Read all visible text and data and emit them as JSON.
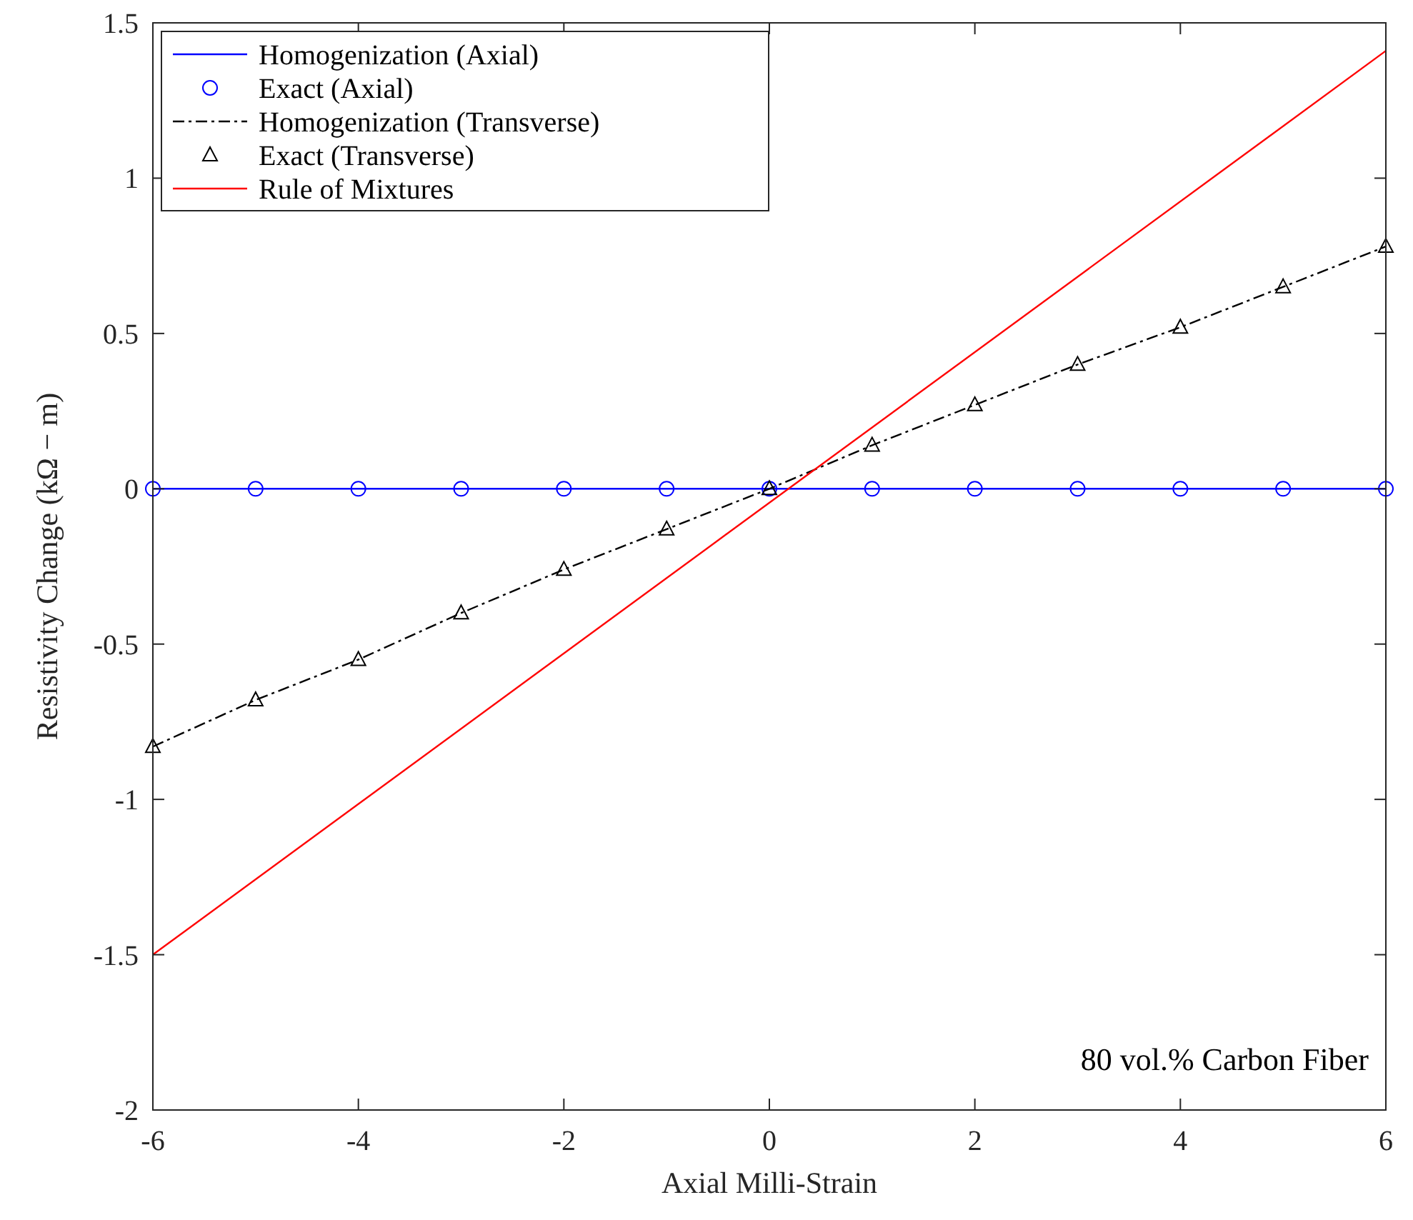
{
  "chart_data": {
    "type": "line",
    "xlabel": "Axial Milli-Strain",
    "ylabel": "Resistivity Change (kΩ − m)",
    "xlim": [
      -6,
      6
    ],
    "ylim": [
      -2,
      1.5
    ],
    "xticks": [
      -6,
      -4,
      -2,
      0,
      2,
      4,
      6
    ],
    "yticks": [
      -2,
      -1.5,
      -1,
      -0.5,
      0,
      0.5,
      1,
      1.5
    ],
    "grid": false,
    "legend": "top left",
    "annotations": [
      "80 vol.% Carbon Fiber"
    ],
    "series": [
      {
        "name": "Homogenization (Axial)",
        "color": "#0000ff",
        "marker": "none",
        "line_style": "solid",
        "x": [
          -6,
          6
        ],
        "values": [
          0,
          0
        ]
      },
      {
        "name": "Exact (Axial)",
        "type": "scatter",
        "color": "#0000ff",
        "marker": "circle",
        "x": [
          -6,
          -5,
          -4,
          -3,
          -2,
          -1,
          0,
          1,
          2,
          3,
          4,
          5,
          6
        ],
        "values": [
          0,
          0,
          0,
          0,
          0,
          0,
          0,
          0,
          0,
          0,
          0,
          0,
          0
        ]
      },
      {
        "name": "Homogenization (Transverse)",
        "color": "#000000",
        "marker": "none",
        "line_style": "dashdot",
        "x": [
          -6,
          -5,
          -4,
          -3,
          -2,
          -1,
          0,
          1,
          2,
          3,
          4,
          5,
          6
        ],
        "values": [
          -0.83,
          -0.68,
          -0.55,
          -0.4,
          -0.26,
          -0.13,
          0,
          0.14,
          0.27,
          0.4,
          0.52,
          0.65,
          0.78
        ]
      },
      {
        "name": "Exact (Transverse)",
        "type": "scatter",
        "color": "#000000",
        "marker": "triangle",
        "x": [
          -6,
          -5,
          -4,
          -3,
          -2,
          -1,
          0,
          1,
          2,
          3,
          4,
          5,
          6
        ],
        "values": [
          -0.83,
          -0.68,
          -0.55,
          -0.4,
          -0.26,
          -0.13,
          0,
          0.14,
          0.27,
          0.4,
          0.52,
          0.65,
          0.78
        ]
      },
      {
        "name": "Rule of Mixtures",
        "color": "#ff0000",
        "marker": "none",
        "line_style": "solid",
        "x": [
          -6,
          6
        ],
        "values": [
          -1.5,
          1.41
        ]
      }
    ]
  }
}
